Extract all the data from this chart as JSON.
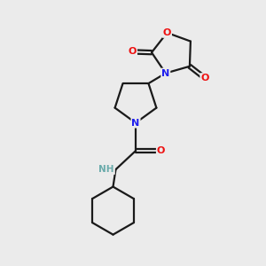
{
  "bg_color": "#ebebeb",
  "bond_color": "#1a1a1a",
  "atom_colors": {
    "N": "#2020ee",
    "O": "#ee1010",
    "H": "#6aabab",
    "C": "#1a1a1a"
  }
}
